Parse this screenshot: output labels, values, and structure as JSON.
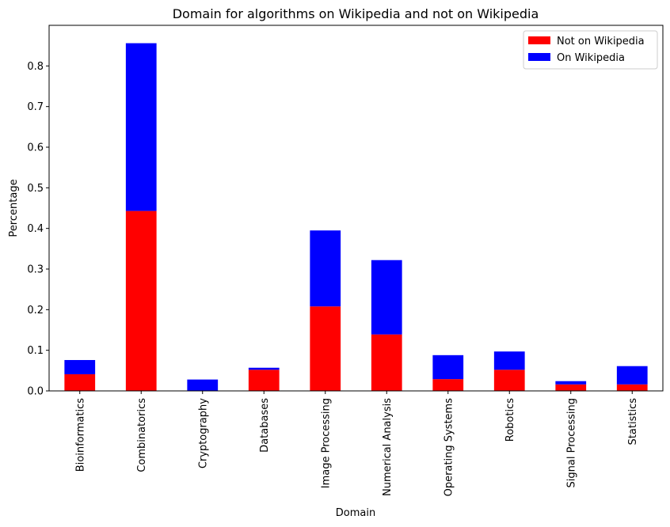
{
  "chart_data": {
    "type": "bar",
    "stacked": true,
    "title": "Domain for algorithms on Wikipedia and not on Wikipedia",
    "xlabel": "Domain",
    "ylabel": "Percentage",
    "ylim": [
      0,
      0.9
    ],
    "yticks": [
      "0.0",
      "0.1",
      "0.2",
      "0.3",
      "0.4",
      "0.5",
      "0.6",
      "0.7",
      "0.8"
    ],
    "grid": false,
    "legend_position": "top-right",
    "categories": [
      "Bioinformatics",
      "Combinatorics",
      "Cryptography",
      "Databases",
      "Image Processing",
      "Numerical Analysis",
      "Operating Systems",
      "Robotics",
      "Signal Processing",
      "Statistics"
    ],
    "series": [
      {
        "name": "Not on Wikipedia",
        "color": "#ff0000",
        "values": [
          0.041,
          0.443,
          0.0,
          0.052,
          0.208,
          0.139,
          0.029,
          0.052,
          0.016,
          0.016
        ]
      },
      {
        "name": "On Wikipedia",
        "color": "#0000ff",
        "values": [
          0.035,
          0.413,
          0.028,
          0.005,
          0.187,
          0.183,
          0.059,
          0.045,
          0.008,
          0.045
        ]
      }
    ]
  }
}
